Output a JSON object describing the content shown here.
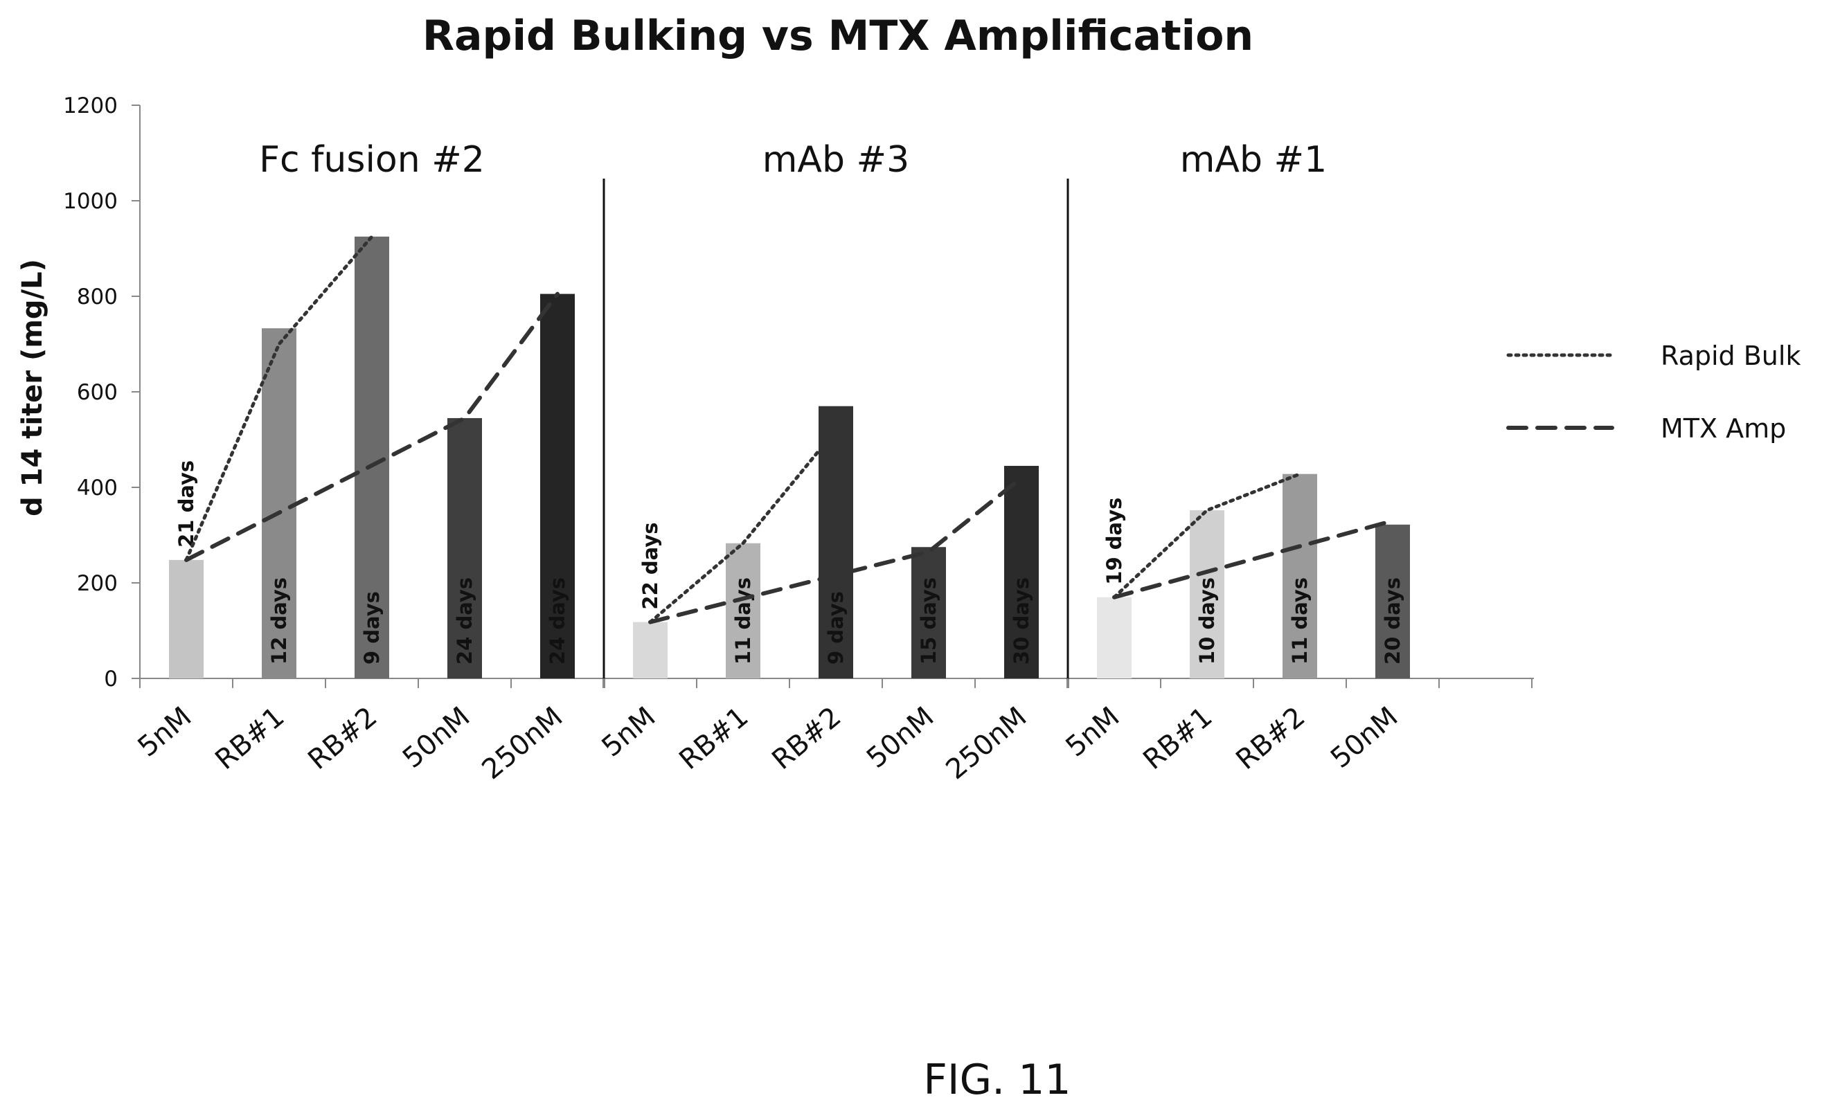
{
  "figure_label": "FIG. 11",
  "chart_data": {
    "type": "bar",
    "title": "Rapid Bulking vs MTX Amplification",
    "xlabel": "",
    "ylabel": "d 14 titer (mg/L)",
    "ylim": [
      0,
      1200
    ],
    "yticks": [
      0,
      200,
      400,
      600,
      800,
      1000,
      1200
    ],
    "grid": false,
    "legend_position": "right",
    "groups": [
      {
        "name": "Fc fusion #2",
        "categories": [
          "5nM",
          "RB#1",
          "RB#2",
          "50nM",
          "250nM"
        ],
        "values": [
          248,
          733,
          925,
          545,
          805
        ],
        "bar_labels": [
          "21 days",
          "12 days",
          "9 days",
          "24 days",
          "24 days"
        ],
        "bar_colors": [
          "#c4c4c4",
          "#8a8a8a",
          "#6b6b6b",
          "#3f3f3f",
          "#252525"
        ]
      },
      {
        "name": "mAb #3",
        "categories": [
          "5nM",
          "RB#1",
          "RB#2",
          "50nM",
          "250nM"
        ],
        "values": [
          118,
          283,
          570,
          275,
          445
        ],
        "bar_labels": [
          "22 days",
          "11 days",
          "9 days",
          "15 days",
          "30 days"
        ],
        "bar_colors": [
          "#d9d9d9",
          "#b3b3b3",
          "#333333",
          "#3a3a3a",
          "#2b2b2b"
        ]
      },
      {
        "name": "mAb #1",
        "categories": [
          "5nM",
          "RB#1",
          "RB#2",
          "50nM"
        ],
        "values": [
          170,
          352,
          428,
          322
        ],
        "bar_labels": [
          "19 days",
          "10 days",
          "11 days",
          "20 days"
        ],
        "bar_colors": [
          "#e6e6e6",
          "#d0d0d0",
          "#9a9a9a",
          "#5a5a5a"
        ]
      }
    ],
    "series": [
      {
        "name": "Rapid Bulk",
        "style": "dotted",
        "segments": [
          [
            [
              0,
              248
            ],
            [
              1,
              700
            ],
            [
              2,
              925
            ]
          ],
          [
            [
              5,
              118
            ],
            [
              6,
              283
            ],
            [
              7,
              520
            ]
          ],
          [
            [
              10,
              170
            ],
            [
              11,
              352
            ],
            [
              12,
              428
            ]
          ]
        ]
      },
      {
        "name": "MTX Amp",
        "style": "dashed",
        "segments": [
          [
            [
              0,
              248
            ],
            [
              3,
              545
            ],
            [
              4,
              805
            ]
          ],
          [
            [
              5,
              118
            ],
            [
              8,
              265
            ],
            [
              9,
              420
            ]
          ],
          [
            [
              10,
              170
            ],
            [
              13,
              330
            ]
          ]
        ]
      }
    ]
  }
}
